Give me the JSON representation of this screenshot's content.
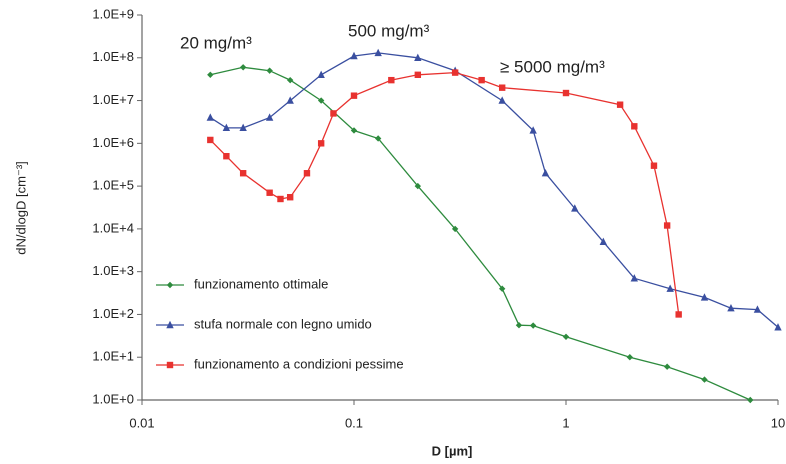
{
  "chart_data": {
    "type": "line",
    "log_x": true,
    "log_y": true,
    "x_label": "D [µm]",
    "y_label": "dN/dlogD [cm⁻³]",
    "xlim": [
      0.01,
      10
    ],
    "xticks": [
      0.01,
      0.1,
      1,
      10
    ],
    "ylim": [
      1,
      1000000000
    ],
    "yticks": [
      {
        "value": 1,
        "label": "1.0E+0"
      },
      {
        "value": 10,
        "label": "1.0E+1"
      },
      {
        "value": 100,
        "label": "1.0E+2"
      },
      {
        "value": 1000,
        "label": "1.0E+3"
      },
      {
        "value": 10000,
        "label": "1.0E+4"
      },
      {
        "value": 100000,
        "label": "1.0E+5"
      },
      {
        "value": 1000000,
        "label": "1.0E+6"
      },
      {
        "value": 10000000,
        "label": "1.0E+7"
      },
      {
        "value": 100000000,
        "label": "1.0E+8"
      },
      {
        "value": 1000000000,
        "label": "1.0E+9"
      }
    ],
    "legend": "lower left",
    "annotations": [
      {
        "text": "20 mg/m³",
        "color": "#2e8b3e"
      },
      {
        "text": "500 mg/m³",
        "color": "#3a4fa0"
      },
      {
        "text": "≥ 5000 mg/m³",
        "color": "#e8322f"
      }
    ],
    "series": [
      {
        "name": "funzionamento ottimale",
        "color": "#2e8b3e",
        "marker": "diamond",
        "x": [
          0.021,
          0.03,
          0.04,
          0.05,
          0.07,
          0.1,
          0.13,
          0.2,
          0.3,
          0.5,
          0.6,
          0.7,
          1,
          2,
          3,
          4.5,
          7.4
        ],
        "values": [
          40000000,
          60000000,
          50000000,
          30000000,
          10000000,
          2000000,
          1300000,
          100000,
          10000,
          400,
          56,
          55,
          30,
          10,
          6,
          3,
          1
        ]
      },
      {
        "name": "stufa normale con legno umido",
        "color": "#3a4fa0",
        "marker": "triangle",
        "x": [
          0.021,
          0.025,
          0.03,
          0.04,
          0.05,
          0.07,
          0.1,
          0.13,
          0.2,
          0.3,
          0.5,
          0.7,
          0.8,
          1.1,
          1.5,
          2.1,
          3.1,
          4.5,
          6,
          8,
          10
        ],
        "values": [
          4000000,
          2300000,
          2300000,
          4000000,
          10000000,
          40000000,
          110000000,
          130000000,
          100000000,
          50000000,
          10000000,
          2000000,
          200000,
          30000,
          5000,
          700,
          400,
          250,
          140,
          130,
          50
        ]
      },
      {
        "name": "funzionamento a condizioni pessime",
        "color": "#e8322f",
        "marker": "square",
        "x": [
          0.021,
          0.025,
          0.03,
          0.04,
          0.045,
          0.05,
          0.06,
          0.07,
          0.08,
          0.1,
          0.15,
          0.2,
          0.3,
          0.4,
          0.5,
          1,
          1.8,
          2.1,
          2.6,
          3,
          3.4
        ],
        "values": [
          1200000,
          500000,
          200000,
          70000,
          50000,
          55000,
          200000,
          1000000,
          5000000,
          13000000,
          30000000,
          40000000,
          45000000,
          30000000,
          20000000,
          15000000,
          8000000,
          2500000,
          300000,
          12000,
          100
        ]
      }
    ]
  }
}
